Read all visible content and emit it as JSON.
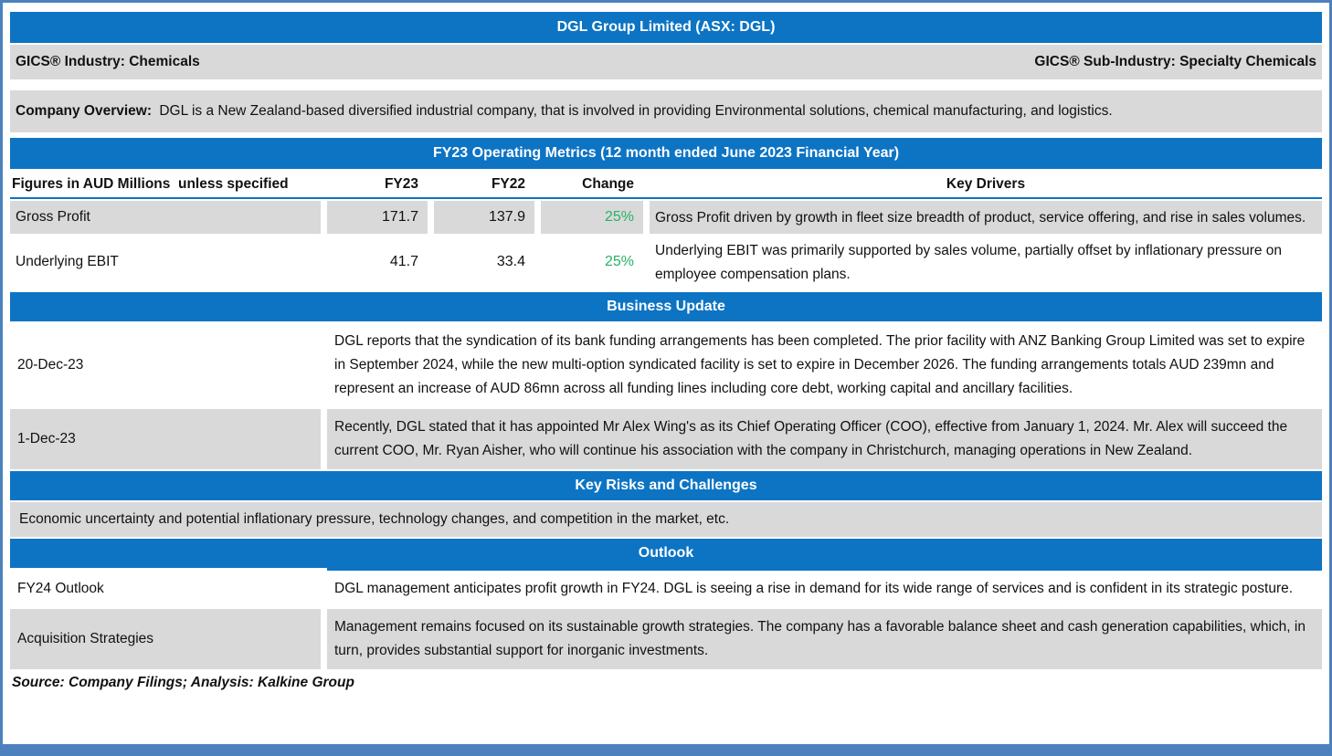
{
  "title": "DGL Group Limited (ASX: DGL)",
  "industry": {
    "left": "GICS® Industry: Chemicals",
    "right": "GICS® Sub-Industry: Specialty Chemicals"
  },
  "overview": {
    "label": "Company Overview:",
    "text": "DGL is a New Zealand-based diversified industrial company, that is involved in providing Environmental solutions, chemical manufacturing, and logistics."
  },
  "metrics": {
    "section_title": "FY23 Operating Metrics (12 month ended June 2023 Financial Year)",
    "columns": {
      "label": "Figures in AUD Millions  unless specified",
      "fy23": "FY23",
      "fy22": "FY22",
      "change": "Change",
      "drivers": "Key Drivers"
    },
    "rows": [
      {
        "label": "Gross Profit",
        "fy23": "171.7",
        "fy22": "137.9",
        "change": "25%",
        "driver": "Gross Profit driven by growth in fleet size breadth of product, service offering, and rise in sales volumes."
      },
      {
        "label": "Underlying EBIT",
        "fy23": "41.7",
        "fy22": "33.4",
        "change": "25%",
        "driver": "Underlying EBIT was primarily supported by sales volume, partially offset by inflationary pressure on employee compensation plans."
      }
    ]
  },
  "business_update": {
    "section_title": "Business Update",
    "items": [
      {
        "date": "20-Dec-23",
        "text": "DGL reports that the syndication of its bank funding arrangements has been completed. The prior facility with ANZ Banking Group Limited was set to expire in September 2024, while the new multi-option syndicated facility is set to expire in December 2026. The funding arrangements totals AUD 239mn and represent an increase of AUD 86mn across all funding lines including core debt, working capital and ancillary facilities."
      },
      {
        "date": "1-Dec-23",
        "text": "Recently, DGL stated that it has appointed Mr Alex Wing's as its Chief Operating Officer (COO), effective from January 1, 2024. Mr. Alex will succeed the current COO, Mr. Ryan Aisher, who will continue his association with the company in Christchurch, managing operations in New Zealand."
      }
    ]
  },
  "key_risks": {
    "section_title": "Key Risks and Challenges",
    "text": "Economic uncertainty and potential inflationary pressure, technology changes, and competition in the market, etc."
  },
  "outlook": {
    "section_title": "Outlook",
    "items": [
      {
        "label": "FY24 Outlook",
        "text": "DGL management anticipates profit growth in FY24. DGL is seeing a rise in demand for its wide range of services and is confident in its strategic posture."
      },
      {
        "label": "Acquisition Strategies",
        "text": "Management remains focused on its sustainable growth strategies. The company has a favorable balance sheet and cash generation capabilities, which, in turn, provides substantial support for inorganic investments."
      }
    ]
  },
  "footer": {
    "source": "Source: Company Filings; Analysis: Kalkine Group"
  },
  "colors": {
    "section_blue": "#0d74c4",
    "border_blue": "#4d81bd",
    "row_gray": "#d9d9d9",
    "change_green": "#27b168"
  }
}
